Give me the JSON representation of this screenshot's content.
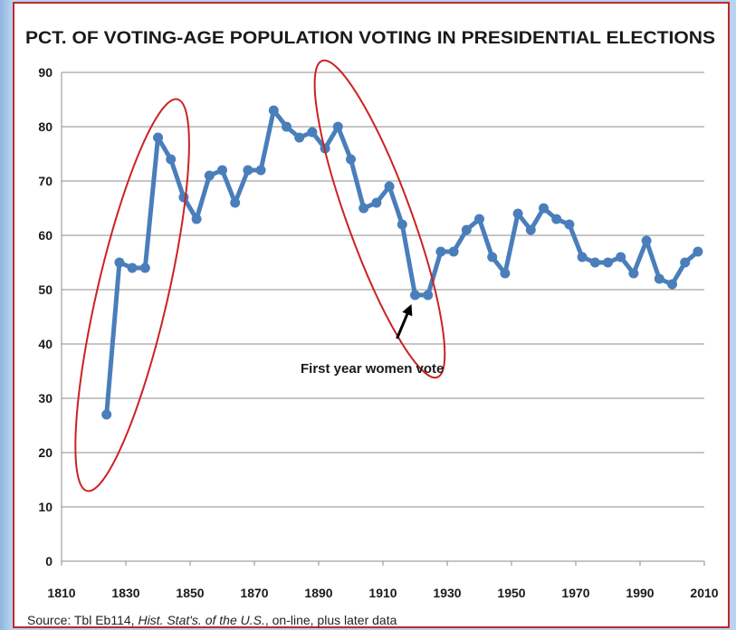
{
  "chart_data": {
    "type": "line",
    "title": "PCT. OF VOTING-AGE POPULATION VOTING IN PRESIDENTIAL ELECTIONS",
    "xlabel": "",
    "ylabel": "",
    "xlim": [
      1810,
      2010
    ],
    "ylim": [
      0,
      90
    ],
    "x_ticks": [
      1810,
      1830,
      1850,
      1870,
      1890,
      1910,
      1930,
      1950,
      1970,
      1990,
      2010
    ],
    "y_ticks": [
      0,
      10,
      20,
      30,
      40,
      50,
      60,
      70,
      80,
      90
    ],
    "grid": true,
    "legend": "none",
    "series": [
      {
        "color": "#4a7ebb",
        "x": [
          1824,
          1828,
          1832,
          1836,
          1840,
          1844,
          1848,
          1852,
          1856,
          1860,
          1864,
          1868,
          1872,
          1876,
          1880,
          1884,
          1888,
          1892,
          1896,
          1900,
          1904,
          1908,
          1912,
          1916,
          1920,
          1924,
          1928,
          1932,
          1936,
          1940,
          1944,
          1948,
          1952,
          1956,
          1960,
          1964,
          1968,
          1972,
          1976,
          1980,
          1984,
          1988,
          1992,
          1996,
          2000,
          2004,
          2008
        ],
        "values": [
          27,
          55,
          54,
          54,
          78,
          74,
          67,
          63,
          71,
          72,
          66,
          72,
          72,
          83,
          80,
          78,
          79,
          76,
          80,
          74,
          65,
          66,
          69,
          62,
          49,
          49,
          57,
          57,
          61,
          63,
          56,
          53,
          64,
          61,
          65,
          63,
          62,
          56,
          55,
          55,
          56,
          53,
          59,
          52,
          51,
          55,
          57
        ]
      }
    ],
    "annotations": [
      {
        "text": "First year women vote",
        "x": 1920,
        "y": 49
      }
    ],
    "highlight_ellipses": [
      {
        "label": "",
        "color": "#cc2222"
      },
      {
        "label": "",
        "color": "#cc2222"
      }
    ],
    "source": {
      "prefix": "Source: Tbl Eb114, ",
      "italic": "Hist. Stat's. of the U.S.",
      "suffix": ", on-line, plus later data"
    }
  }
}
